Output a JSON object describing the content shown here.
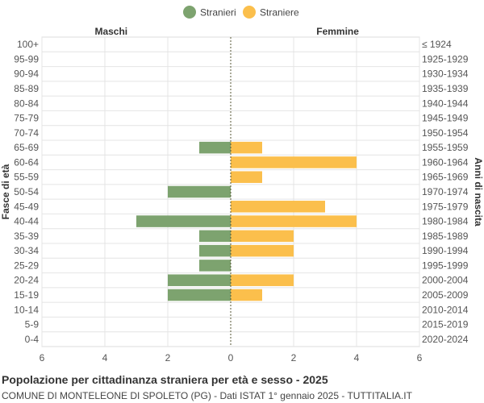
{
  "chart_data": {
    "type": "bar",
    "orientation": "horizontal",
    "title": "Popolazione per cittadinanza straniera per età e sesso - 2025",
    "subtitle": "COMUNE DI MONTELEONE DI SPOLETO (PG) - Dati ISTAT 1° gennaio 2025 - TUTTITALIA.IT",
    "left_header": "Maschi",
    "right_header": "Femmine",
    "ylabel_left": "Fasce di età",
    "ylabel_right": "Anni di nascita",
    "xlim": [
      -6,
      6
    ],
    "xticks": [
      -6,
      -4,
      -2,
      0,
      2,
      4,
      6
    ],
    "xtick_labels": [
      "6",
      "4",
      "2",
      "0",
      "2",
      "4",
      "6"
    ],
    "grid": true,
    "legend_position": "top-center",
    "categories": [
      "100+",
      "95-99",
      "90-94",
      "85-89",
      "80-84",
      "75-79",
      "70-74",
      "65-69",
      "60-64",
      "55-59",
      "50-54",
      "45-49",
      "40-44",
      "35-39",
      "30-34",
      "25-29",
      "20-24",
      "15-19",
      "10-14",
      "5-9",
      "0-4"
    ],
    "birth_years": [
      "≤ 1924",
      "1925-1929",
      "1930-1934",
      "1935-1939",
      "1940-1944",
      "1945-1949",
      "1950-1954",
      "1955-1959",
      "1960-1964",
      "1965-1969",
      "1970-1974",
      "1975-1979",
      "1980-1984",
      "1985-1989",
      "1990-1994",
      "1995-1999",
      "2000-2004",
      "2005-2009",
      "2010-2014",
      "2015-2019",
      "2020-2024"
    ],
    "series": [
      {
        "name": "Stranieri",
        "color": "#7da36f",
        "values": [
          0,
          0,
          0,
          0,
          0,
          0,
          0,
          1,
          0,
          0,
          2,
          0,
          3,
          1,
          1,
          1,
          2,
          2,
          0,
          0,
          0
        ]
      },
      {
        "name": "Straniere",
        "color": "#fbbf4c",
        "values": [
          0,
          0,
          0,
          0,
          0,
          0,
          0,
          1,
          4,
          1,
          0,
          3,
          4,
          2,
          2,
          0,
          2,
          1,
          0,
          0,
          0
        ]
      }
    ]
  }
}
